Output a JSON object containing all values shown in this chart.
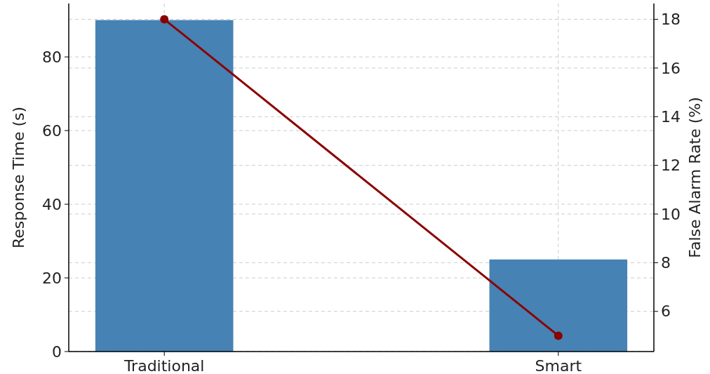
{
  "chart_data": {
    "type": "bar",
    "categories": [
      "Traditional",
      "Smart"
    ],
    "ylabel": "Response Time (s)",
    "y2label": "False Alarm Rate (%)",
    "series": [
      {
        "color": "#4682b4",
        "values": [
          90,
          25
        ]
      },
      {
        "type": "line",
        "color": "#8b0000",
        "values": [
          18,
          5
        ],
        "axis": "y2",
        "marker": "circle"
      }
    ],
    "ylim": [
      0,
      94.5
    ],
    "yticks": [
      0,
      20,
      40,
      60,
      80
    ],
    "y2lim": [
      4.35,
      18.65
    ],
    "y2ticks": [
      6,
      8,
      10,
      12,
      14,
      16,
      18
    ],
    "grid": true
  }
}
